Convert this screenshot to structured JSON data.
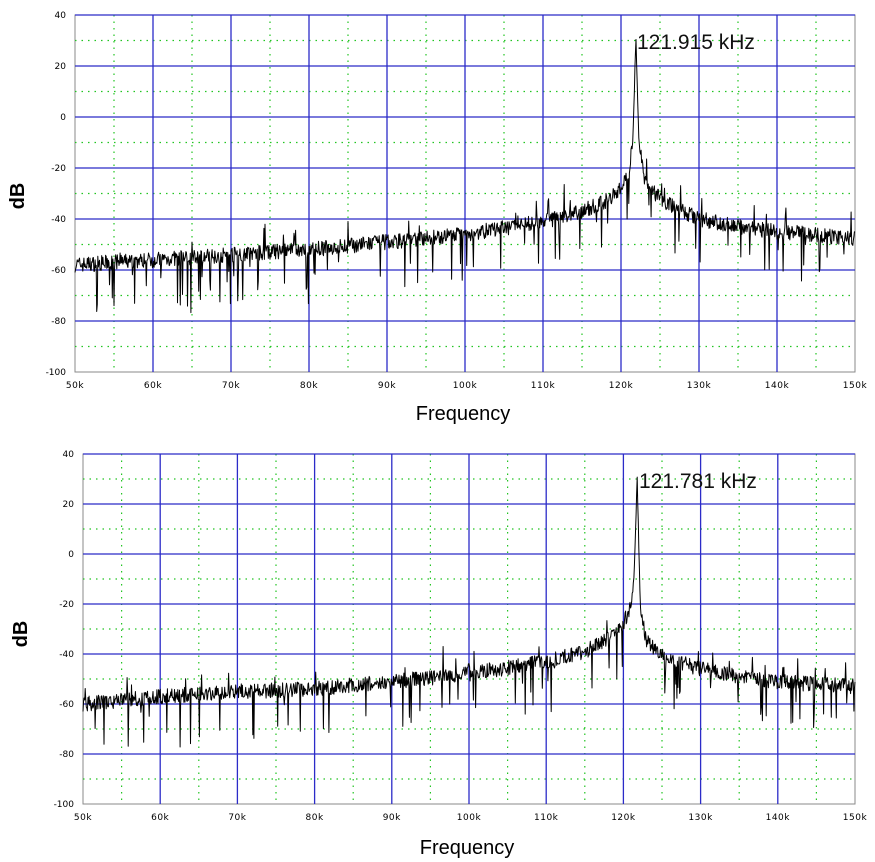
{
  "colors": {
    "major_grid": "#2b2bc8",
    "minor_grid": "#22c422",
    "trace": "#000000",
    "frame": "#8a8a8a"
  },
  "chart_data": [
    {
      "type": "line",
      "xlabel": "Frequency",
      "ylabel": "dB",
      "xlim": [
        50,
        150
      ],
      "ylim": [
        -100,
        40
      ],
      "x_unit": "kHz",
      "xticks": [
        "50k",
        "60k",
        "70k",
        "80k",
        "90k",
        "100k",
        "110k",
        "120k",
        "130k",
        "140k",
        "150k"
      ],
      "yticks": [
        "40",
        "20",
        "0",
        "-20",
        "-40",
        "-60",
        "-80",
        "-100"
      ],
      "major_grid": true,
      "minor_grid": true,
      "annotation": "121.915 kHz",
      "series": [
        {
          "x": [
            50,
            60,
            70,
            80,
            90,
            100,
            110,
            115,
            118,
            120,
            121,
            121.5,
            121.915,
            122.3,
            123,
            125,
            128,
            130,
            135,
            140,
            145,
            150
          ],
          "y": [
            -58,
            -56,
            -54,
            -52,
            -49,
            -46,
            -41,
            -37,
            -33,
            -28,
            -21,
            -10,
            31,
            -10,
            -25,
            -32,
            -37,
            -40,
            -43,
            -45,
            -46,
            -48
          ]
        }
      ]
    },
    {
      "type": "line",
      "xlabel": "Frequency",
      "ylabel": "dB",
      "xlim": [
        50,
        150
      ],
      "ylim": [
        -100,
        40
      ],
      "x_unit": "kHz",
      "xticks": [
        "50k",
        "60k",
        "70k",
        "80k",
        "90k",
        "100k",
        "110k",
        "120k",
        "130k",
        "140k",
        "150k"
      ],
      "yticks": [
        "40",
        "20",
        "0",
        "-20",
        "-40",
        "-60",
        "-80",
        "-100"
      ],
      "major_grid": true,
      "minor_grid": true,
      "annotation": "121.781 kHz",
      "series": [
        {
          "x": [
            50,
            60,
            70,
            80,
            90,
            100,
            110,
            115,
            118,
            120,
            121,
            121.4,
            121.781,
            122.2,
            123,
            125,
            128,
            130,
            135,
            140,
            145,
            150
          ],
          "y": [
            -60,
            -57,
            -55,
            -54,
            -51,
            -48,
            -43,
            -39,
            -34,
            -28,
            -20,
            -8,
            31,
            -22,
            -35,
            -40,
            -44,
            -46,
            -49,
            -51,
            -52,
            -53
          ]
        }
      ]
    }
  ]
}
